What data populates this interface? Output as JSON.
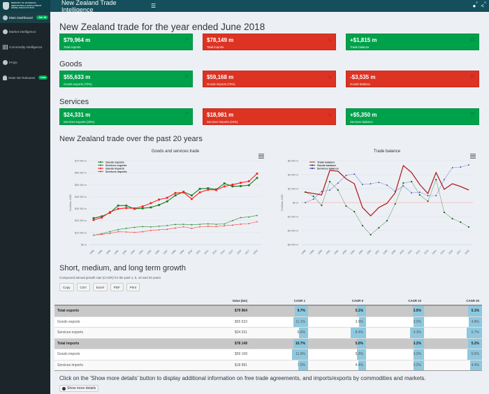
{
  "header": {
    "org_lines": [
      "MINISTRY OF BUSINESS,",
      "INNOVATION & EMPLOYMENT",
      "HĪKINA WHAKATUTUKI"
    ],
    "app_title": "New Zealand Trade Intelligence",
    "menu_icon": "hamburger-icon",
    "right_icons": [
      "comment-icon",
      "share-icon"
    ]
  },
  "sidebar": {
    "items": [
      {
        "label": "Main Dashboard",
        "icon": "dashboard-icon",
        "badge": "Jun 18",
        "active": true
      },
      {
        "label": "Market intelligence",
        "icon": "globe-icon"
      },
      {
        "label": "Commodity intelligence",
        "icon": "barcode-icon"
      },
      {
        "label": "FAQs",
        "icon": "question-icon"
      },
      {
        "label": "Stats NZ Releases",
        "icon": "bell-icon",
        "badge": "new"
      }
    ]
  },
  "main": {
    "title": "New Zealand trade for the year ended June 2018",
    "summary": [
      {
        "value": "$79,964 m",
        "label": "Total exports",
        "color": "green",
        "icon": "export-arrow-icon"
      },
      {
        "value": "$78,149 m",
        "label": "Total imports",
        "color": "red",
        "icon": "import-arrow-icon"
      },
      {
        "value": "+$1,815 m",
        "label": "Trade balance",
        "color": "green",
        "icon": "balance-scale-icon"
      }
    ],
    "goods_title": "Goods",
    "goods": [
      {
        "value": "$55,633 m",
        "label": "Goods exports (70%)",
        "color": "green",
        "icon": "export-arrow-icon"
      },
      {
        "value": "$59,168 m",
        "label": "Goods imports (76%)",
        "color": "red",
        "icon": "import-arrow-icon"
      },
      {
        "value": "-$3,535 m",
        "label": "Goods balance",
        "color": "red",
        "icon": "balance-scale-icon"
      }
    ],
    "services_title": "Services",
    "services": [
      {
        "value": "$24,331 m",
        "label": "Services exports (30%)",
        "color": "green",
        "icon": "export-arrow-icon"
      },
      {
        "value": "$18,981 m",
        "label": "Services imports (24%)",
        "color": "red",
        "icon": "import-arrow-icon"
      },
      {
        "value": "+$5,350 m",
        "label": "Services balance",
        "color": "green",
        "icon": "balance-scale-icon"
      }
    ],
    "charts_title": "New Zealand trade over the past 20 years"
  },
  "chart_data": [
    {
      "type": "line",
      "title": "Goods and services trade",
      "ylabel": "$ million, NZD",
      "xlabel": "",
      "ylim": [
        0,
        70000
      ],
      "yticks": [
        "$0 m",
        "$10 000 m",
        "$20 000 m",
        "$30 000 m",
        "$40 000 m",
        "$50 000 m",
        "$60 000 m",
        "$70 000 m"
      ],
      "legend": "top-left",
      "x": [
        "1998",
        "1999",
        "2000",
        "2001",
        "2002",
        "2003",
        "2004",
        "2005",
        "2006",
        "2007",
        "2008",
        "2009",
        "2010",
        "2011",
        "2012",
        "2013",
        "2014",
        "2015",
        "2016",
        "2017",
        "2018"
      ],
      "series": [
        {
          "name": "Goods exports",
          "color": "#1f7a1f",
          "marker": "square",
          "values": [
            22000,
            23500,
            26500,
            32500,
            32500,
            29800,
            30200,
            31000,
            33000,
            36000,
            41000,
            44000,
            41000,
            46500,
            47000,
            46000,
            51000,
            48500,
            48800,
            49500,
            55600
          ]
        },
        {
          "name": "Services exports",
          "color": "#2e8b2e",
          "marker": "triangle",
          "values": [
            7800,
            9000,
            10800,
            12500,
            13500,
            14400,
            15000,
            14700,
            15300,
            15900,
            16800,
            16900,
            16500,
            16900,
            17300,
            16900,
            17200,
            20000,
            22500,
            23000,
            24300
          ]
        },
        {
          "name": "Goods imports",
          "color": "#ff2020",
          "marker": "square",
          "values": [
            20500,
            22500,
            27000,
            29800,
            30500,
            30200,
            31800,
            34500,
            37500,
            39000,
            43000,
            43500,
            38000,
            43500,
            45800,
            45500,
            48500,
            50000,
            51500,
            52800,
            59200
          ]
        },
        {
          "name": "Services imports",
          "color": "#ff4040",
          "marker": "triangle",
          "values": [
            7800,
            8500,
            9300,
            10700,
            10500,
            10200,
            10700,
            11800,
            12300,
            12700,
            13800,
            14800,
            13500,
            14800,
            15200,
            15000,
            15700,
            16200,
            17000,
            17500,
            19000
          ]
        }
      ]
    },
    {
      "type": "line",
      "title": "Trade balance",
      "ylabel": "$ million, NZD",
      "xlabel": "",
      "ylim": [
        -6000,
        6000
      ],
      "yticks": [
        "-$6 000 m",
        "-$4 000 m",
        "-$2 000 m",
        "$0 m",
        "$2 000 m",
        "$4 000 m",
        "$6 000 m"
      ],
      "legend": "top-left",
      "x": [
        "1998",
        "1999",
        "2000",
        "2001",
        "2002",
        "2003",
        "2004",
        "2005",
        "2006",
        "2007",
        "2008",
        "2009",
        "2010",
        "2011",
        "2012",
        "2013",
        "2014",
        "2015",
        "2016",
        "2017",
        "2018"
      ],
      "series": [
        {
          "name": "Trade balance",
          "color": "#b22222",
          "marker": "none",
          "values": [
            1500,
            1300,
            1100,
            4600,
            4500,
            3400,
            2700,
            -700,
            -1900,
            -700,
            -100,
            1400,
            5300,
            4300,
            2600,
            1300,
            4300,
            1900,
            2700,
            2300,
            1800
          ]
        },
        {
          "name": "Goods balance",
          "color": "#1a5e1a",
          "marker": "circle",
          "values": [
            1500,
            900,
            -400,
            3000,
            1800,
            -500,
            -1300,
            -3300,
            -4600,
            -3600,
            -2600,
            -200,
            2800,
            3000,
            1100,
            200,
            3300,
            -1400,
            -2300,
            -2800,
            -3500
          ]
        },
        {
          "name": "Services balance",
          "color": "#3a3aa8",
          "marker": "triangle",
          "values": [
            0,
            500,
            1600,
            1800,
            2800,
            3900,
            4100,
            2600,
            2700,
            2900,
            2500,
            1600,
            2400,
            1400,
            1500,
            1000,
            1000,
            3300,
            5000,
            5100,
            5400
          ]
        }
      ]
    }
  ],
  "growth": {
    "title": "Short, medium, and long term growth",
    "subtitle": "Compound annual growth rate (CAGR) for the past 1, 5, 10 and 20 years",
    "buttons": [
      "Copy",
      "CSV",
      "Excel",
      "PDF",
      "Print"
    ],
    "columns": [
      "",
      "Value ($m)",
      "CAGR 1",
      "CAGR 5",
      "CAGR 10",
      "CAGR 20"
    ],
    "rows": [
      {
        "name": "Total exports",
        "value": "$79 964",
        "cagr": [
          "9.7%",
          "5.1%",
          "3.5%",
          "5.1%"
        ],
        "cagr_num": [
          9.7,
          5.1,
          3.5,
          5.1
        ],
        "total": true
      },
      {
        "name": "Goods exports",
        "value": "$55 633",
        "cagr": [
          "11.1%",
          "3.9%",
          "3.2%",
          "4.8%"
        ],
        "cagr_num": [
          11.1,
          3.9,
          3.2,
          4.8
        ]
      },
      {
        "name": "Services exports",
        "value": "$24 331",
        "cagr": [
          "6.6%",
          "8.4%",
          "4.3%",
          "5.7%"
        ],
        "cagr_num": [
          6.6,
          8.4,
          4.3,
          5.7
        ]
      },
      {
        "name": "Total imports",
        "value": "$78 149",
        "cagr": [
          "10.7%",
          "5.0%",
          "3.2%",
          "5.2%"
        ],
        "cagr_num": [
          10.7,
          5.0,
          3.2,
          5.2
        ],
        "total": true
      },
      {
        "name": "Goods imports",
        "value": "$59 168",
        "cagr": [
          "11.9%",
          "5.2%",
          "3.2%",
          "5.5%"
        ],
        "cagr_num": [
          11.9,
          5.2,
          3.2,
          5.5
        ]
      },
      {
        "name": "Services imports",
        "value": "$18 981",
        "cagr": [
          "7.0%",
          "4.4%",
          "3.2%",
          "4.4%"
        ],
        "cagr_num": [
          7.0,
          4.4,
          3.2,
          4.4
        ]
      }
    ]
  },
  "footer": {
    "note": "Click on the 'Show more details' button to display additional information on free trade agreements, and imports/exports by commodities and markets.",
    "button": "Show more details"
  }
}
